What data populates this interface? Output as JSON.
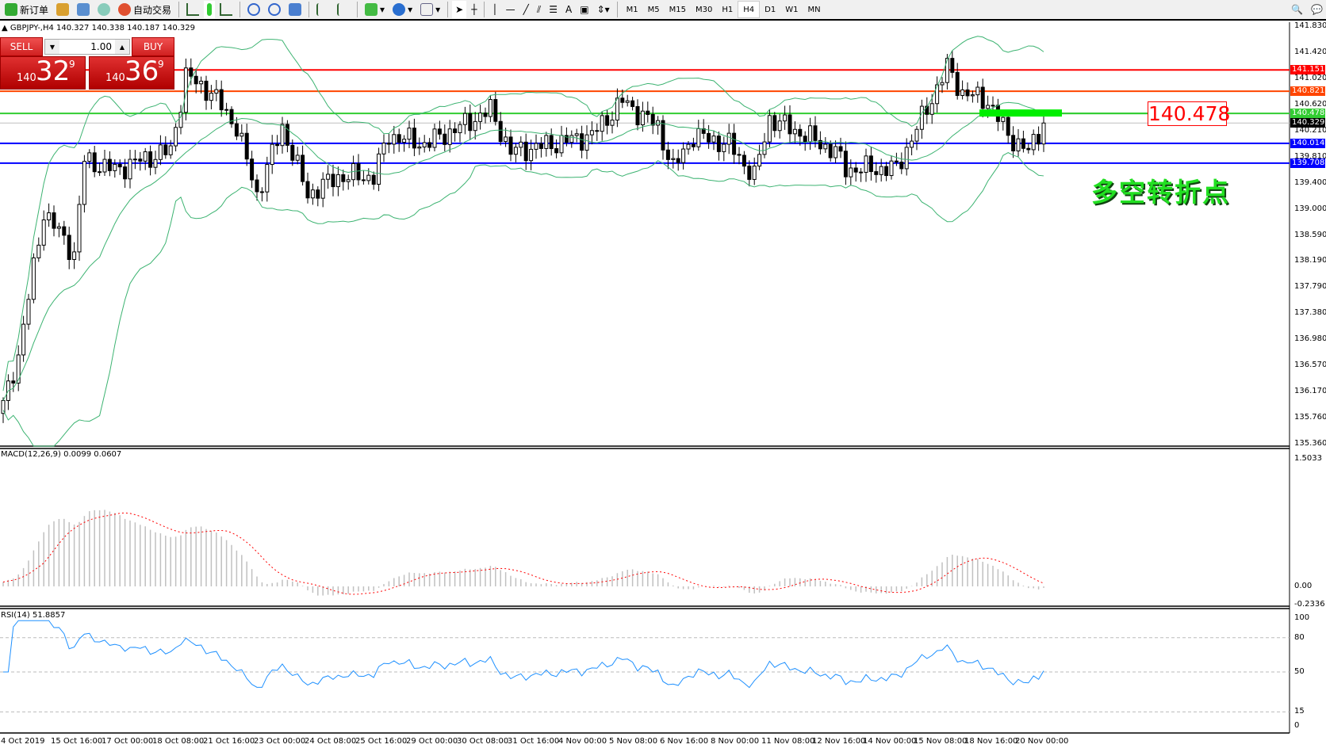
{
  "toolbar": {
    "new_order": "新订单",
    "auto_trading": "自动交易",
    "icons": [
      "new-order-icon",
      "market-watch-icon",
      "navigator-icon",
      "signals-icon",
      "auto-trading-icon",
      "bar-chart-icon",
      "candlestick-icon",
      "line-chart-icon",
      "zoom-in-icon",
      "zoom-out-icon",
      "tile-windows-icon",
      "autoscroll-icon",
      "chart-shift-icon",
      "indicators-icon",
      "periods-icon",
      "templates-icon",
      "cursor-icon",
      "crosshair-icon",
      "vertical-line-icon",
      "horizontal-line-icon",
      "trendline-icon",
      "equidistant-channel-icon",
      "fibonacci-icon",
      "text-icon",
      "text-label-icon",
      "arrows-icon"
    ],
    "text_tool": "A",
    "timeframes": [
      "M1",
      "M5",
      "M15",
      "M30",
      "H1",
      "H4",
      "D1",
      "W1",
      "MN"
    ],
    "active_timeframe": "H4"
  },
  "symbol_line": "GBPJPY-,H4  140.327 140.338 140.187 140.329",
  "trade_panel": {
    "sell": "SELL",
    "buy": "BUY",
    "lot": "1.00",
    "sell_big": "140",
    "sell_main": "32",
    "sell_pip": "9",
    "buy_big": "140",
    "buy_main": "36",
    "buy_pip": "9"
  },
  "price_axis": {
    "ticks": [
      "141.830",
      "141.420",
      "141.020",
      "140.620",
      "140.210",
      "139.810",
      "139.400",
      "139.000",
      "138.590",
      "138.190",
      "137.790",
      "137.380",
      "136.980",
      "136.570",
      "136.170",
      "135.760",
      "135.360"
    ],
    "range": [
      135.36,
      141.83
    ]
  },
  "hlines": [
    {
      "price": "141.151",
      "color": "#ff0000"
    },
    {
      "price": "140.821",
      "color": "#ff4500"
    },
    {
      "price": "140.478",
      "color": "#32cd32"
    },
    {
      "price": "140.329",
      "color": "#000000",
      "current": true
    },
    {
      "price": "140.014",
      "color": "#0000ff"
    },
    {
      "price": "139.708",
      "color": "#0000ff"
    }
  ],
  "annotations": {
    "price_box": "140.478",
    "text": "多空转折点",
    "zone_color": "#00ee00"
  },
  "macd": {
    "label": "MACD(12,26,9) 0.0099 0.0607",
    "ticks": [
      "1.5033",
      "0.00",
      "-0.2336"
    ],
    "range": [
      -0.2336,
      1.5033
    ]
  },
  "rsi": {
    "label": "RSI(14) 51.8857",
    "ticks": [
      "100",
      "80",
      "50",
      "15",
      "0"
    ],
    "levels": [
      80,
      50,
      15
    ]
  },
  "time_axis": [
    "4 Oct 2019",
    "15 Oct 16:00",
    "17 Oct 00:00",
    "18 Oct 08:00",
    "21 Oct 16:00",
    "23 Oct 00:00",
    "24 Oct 08:00",
    "25 Oct 16:00",
    "29 Oct 00:00",
    "30 Oct 08:00",
    "31 Oct 16:00",
    "4 Nov 00:00",
    "5 Nov 08:00",
    "6 Nov 16:00",
    "8 Nov 00:00",
    "11 Nov 08:00",
    "12 Nov 16:00",
    "14 Nov 00:00",
    "15 Nov 08:00",
    "18 Nov 16:00",
    "20 Nov 00:00"
  ],
  "price_path": [
    [
      0,
      135.95
    ],
    [
      3,
      136.74
    ],
    [
      8,
      138.96
    ],
    [
      14,
      138.3
    ],
    [
      16,
      139.75
    ],
    [
      22,
      139.6
    ],
    [
      27,
      139.75
    ],
    [
      33,
      139.9
    ],
    [
      36,
      141.06
    ],
    [
      41,
      140.8
    ],
    [
      46,
      140.27
    ],
    [
      50,
      139.22
    ],
    [
      55,
      140.27
    ],
    [
      60,
      139.22
    ],
    [
      66,
      139.5
    ],
    [
      73,
      139.5
    ],
    [
      76,
      140.14
    ],
    [
      83,
      140.0
    ],
    [
      90,
      140.27
    ],
    [
      96,
      140.53
    ],
    [
      100,
      139.88
    ],
    [
      108,
      140.0
    ],
    [
      116,
      140.14
    ],
    [
      122,
      140.67
    ],
    [
      129,
      140.27
    ],
    [
      132,
      139.62
    ],
    [
      136,
      140.14
    ],
    [
      143,
      140.0
    ],
    [
      148,
      139.5
    ],
    [
      151,
      140.4
    ],
    [
      158,
      140.14
    ],
    [
      164,
      139.88
    ],
    [
      166,
      139.62
    ],
    [
      176,
      139.62
    ],
    [
      181,
      140.4
    ],
    [
      186,
      141.19
    ],
    [
      189,
      140.8
    ],
    [
      194,
      140.67
    ],
    [
      198,
      140.14
    ],
    [
      202,
      139.88
    ],
    [
      205,
      140.33
    ]
  ],
  "colors": {
    "bands": "#3cb371",
    "macd_hist": "#c0c0c0",
    "macd_signal": "#ff0000",
    "rsi": "#1e90ff"
  }
}
